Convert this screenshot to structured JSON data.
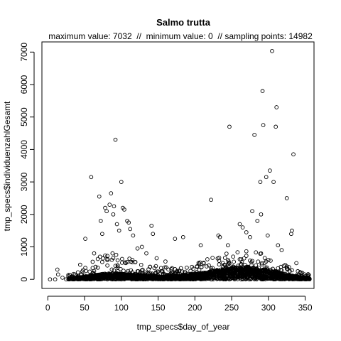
{
  "chart_data": {
    "type": "scatter",
    "title": "Salmo trutta",
    "subtitle": "maximum value: 7032  //  minimum value: 0  // sampling points: 14982",
    "xlabel": "tmp_specs$day_of_year",
    "ylabel": "tmp_specs$individuenzahlGesamt",
    "xlim": [
      -8,
      362
    ],
    "ylim": [
      -280,
      7313
    ],
    "xticks": [
      0,
      50,
      100,
      150,
      200,
      250,
      300,
      350
    ],
    "yticks": [
      0,
      1000,
      2000,
      3000,
      4000,
      5000,
      6000,
      7000
    ],
    "grid": false,
    "marker": "open-circle",
    "highlighted_points": [
      {
        "x": 3,
        "y": 0
      },
      {
        "x": 10,
        "y": 0
      },
      {
        "x": 13,
        "y": 300
      },
      {
        "x": 14,
        "y": 150
      },
      {
        "x": 20,
        "y": 50
      },
      {
        "x": 25,
        "y": 0
      },
      {
        "x": 36,
        "y": 20
      },
      {
        "x": 44,
        "y": 450
      },
      {
        "x": 51,
        "y": 1250
      },
      {
        "x": 59,
        "y": 3150
      },
      {
        "x": 63,
        "y": 800
      },
      {
        "x": 70,
        "y": 2550
      },
      {
        "x": 72,
        "y": 1800
      },
      {
        "x": 74,
        "y": 1400
      },
      {
        "x": 78,
        "y": 2200
      },
      {
        "x": 80,
        "y": 2100
      },
      {
        "x": 84,
        "y": 2300
      },
      {
        "x": 86,
        "y": 2650
      },
      {
        "x": 89,
        "y": 2000
      },
      {
        "x": 90,
        "y": 2250
      },
      {
        "x": 92,
        "y": 4300
      },
      {
        "x": 94,
        "y": 1700
      },
      {
        "x": 97,
        "y": 1500
      },
      {
        "x": 100,
        "y": 3000
      },
      {
        "x": 102,
        "y": 2200
      },
      {
        "x": 104,
        "y": 2150
      },
      {
        "x": 108,
        "y": 1800
      },
      {
        "x": 110,
        "y": 1750
      },
      {
        "x": 112,
        "y": 1550
      },
      {
        "x": 116,
        "y": 1350
      },
      {
        "x": 122,
        "y": 950
      },
      {
        "x": 128,
        "y": 1000
      },
      {
        "x": 134,
        "y": 800
      },
      {
        "x": 141,
        "y": 1650
      },
      {
        "x": 143,
        "y": 1400
      },
      {
        "x": 148,
        "y": 650
      },
      {
        "x": 160,
        "y": 550
      },
      {
        "x": 173,
        "y": 1250
      },
      {
        "x": 184,
        "y": 1300
      },
      {
        "x": 208,
        "y": 1050
      },
      {
        "x": 222,
        "y": 2450
      },
      {
        "x": 232,
        "y": 1350
      },
      {
        "x": 234,
        "y": 1300
      },
      {
        "x": 245,
        "y": 1050
      },
      {
        "x": 247,
        "y": 4700
      },
      {
        "x": 261,
        "y": 1700
      },
      {
        "x": 265,
        "y": 1600
      },
      {
        "x": 270,
        "y": 1450
      },
      {
        "x": 275,
        "y": 1300
      },
      {
        "x": 278,
        "y": 2100
      },
      {
        "x": 281,
        "y": 4450
      },
      {
        "x": 285,
        "y": 1800
      },
      {
        "x": 289,
        "y": 3000
      },
      {
        "x": 290,
        "y": 2000
      },
      {
        "x": 292,
        "y": 5800
      },
      {
        "x": 293,
        "y": 4750
      },
      {
        "x": 297,
        "y": 3150
      },
      {
        "x": 299,
        "y": 1350
      },
      {
        "x": 302,
        "y": 3350
      },
      {
        "x": 305,
        "y": 7032
      },
      {
        "x": 307,
        "y": 3000
      },
      {
        "x": 310,
        "y": 4700
      },
      {
        "x": 311,
        "y": 5300
      },
      {
        "x": 313,
        "y": 1050
      },
      {
        "x": 318,
        "y": 900
      },
      {
        "x": 325,
        "y": 2500
      },
      {
        "x": 331,
        "y": 1400
      },
      {
        "x": 332,
        "y": 1500
      },
      {
        "x": 334,
        "y": 3850
      },
      {
        "x": 338,
        "y": 500
      },
      {
        "x": 346,
        "y": 200
      },
      {
        "x": 352,
        "y": 20
      },
      {
        "x": 354,
        "y": 10
      }
    ],
    "density_profile": [
      {
        "x": 30,
        "median": 20,
        "upper": 150
      },
      {
        "x": 50,
        "median": 50,
        "upper": 350
      },
      {
        "x": 70,
        "median": 100,
        "upper": 800
      },
      {
        "x": 90,
        "median": 120,
        "upper": 950
      },
      {
        "x": 110,
        "median": 100,
        "upper": 650
      },
      {
        "x": 130,
        "median": 80,
        "upper": 500
      },
      {
        "x": 150,
        "median": 60,
        "upper": 400
      },
      {
        "x": 170,
        "median": 60,
        "upper": 350
      },
      {
        "x": 190,
        "median": 80,
        "upper": 400
      },
      {
        "x": 210,
        "median": 120,
        "upper": 550
      },
      {
        "x": 230,
        "median": 180,
        "upper": 750
      },
      {
        "x": 250,
        "median": 230,
        "upper": 850
      },
      {
        "x": 270,
        "median": 240,
        "upper": 900
      },
      {
        "x": 290,
        "median": 200,
        "upper": 800
      },
      {
        "x": 310,
        "median": 150,
        "upper": 650
      },
      {
        "x": 330,
        "median": 80,
        "upper": 450
      },
      {
        "x": 350,
        "median": 30,
        "upper": 200
      }
    ],
    "summary": {
      "max": 7032,
      "min": 0,
      "n": 14982
    }
  }
}
